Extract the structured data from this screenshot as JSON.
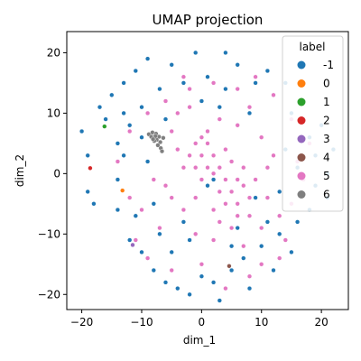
{
  "chart_data": {
    "type": "scatter",
    "title": "UMAP projection",
    "xlabel": "dim_1",
    "ylabel": "dim_2",
    "xlim": [
      -22.5,
      24.5
    ],
    "ylim": [
      -22.5,
      23.5
    ],
    "xticks": [
      -20,
      -10,
      0,
      10,
      20
    ],
    "yticks": [
      -20,
      -10,
      0,
      10,
      20
    ],
    "grid": false,
    "legend": {
      "title": "label",
      "placement": "top-right",
      "entries": [
        {
          "label": "-1",
          "color": "#1f77b4"
        },
        {
          "label": "0",
          "color": "#ff7f0e"
        },
        {
          "label": "1",
          "color": "#2ca02c"
        },
        {
          "label": "2",
          "color": "#d62728"
        },
        {
          "label": "3",
          "color": "#9467bd"
        },
        {
          "label": "4",
          "color": "#8c564b"
        },
        {
          "label": "5",
          "color": "#e377c2"
        },
        {
          "label": "6",
          "color": "#7f7f7f"
        }
      ]
    },
    "series": [
      {
        "name": "-1",
        "color": "#1f77b4",
        "points": [
          [
            -20,
            7
          ],
          [
            -19,
            3
          ],
          [
            -19,
            -3
          ],
          [
            -18,
            -5
          ],
          [
            -17,
            11
          ],
          [
            -16,
            9
          ],
          [
            -15,
            13
          ],
          [
            -14,
            5
          ],
          [
            -14,
            -6
          ],
          [
            -13,
            15
          ],
          [
            -13,
            3
          ],
          [
            -12,
            8
          ],
          [
            -12,
            -11
          ],
          [
            -11,
            17
          ],
          [
            -10,
            -13
          ],
          [
            -10,
            11
          ],
          [
            -9,
            19
          ],
          [
            -8,
            -16
          ],
          [
            -7,
            14
          ],
          [
            -7,
            -10
          ],
          [
            -6,
            -18
          ],
          [
            -5,
            18
          ],
          [
            -4,
            -19
          ],
          [
            -3,
            15
          ],
          [
            -2,
            -20
          ],
          [
            -1,
            20
          ],
          [
            0,
            -17
          ],
          [
            1,
            16
          ],
          [
            2,
            -18
          ],
          [
            3,
            -21
          ],
          [
            4,
            14
          ],
          [
            4,
            20
          ],
          [
            5,
            -16
          ],
          [
            6,
            18
          ],
          [
            7,
            -14
          ],
          [
            8,
            -19
          ],
          [
            9,
            15
          ],
          [
            10,
            -12
          ],
          [
            11,
            17
          ],
          [
            12,
            -16
          ],
          [
            12,
            13
          ],
          [
            13,
            -10
          ],
          [
            14,
            15
          ],
          [
            15,
            -13
          ],
          [
            15,
            10
          ],
          [
            16,
            -8
          ],
          [
            17,
            12
          ],
          [
            18,
            -6
          ],
          [
            18,
            6
          ],
          [
            19,
            3
          ],
          [
            19,
            -2
          ],
          [
            20,
            8
          ],
          [
            21,
            0
          ],
          [
            21,
            -4
          ],
          [
            22,
            4
          ],
          [
            8,
            10
          ],
          [
            -6,
            9
          ],
          [
            -8,
            -5
          ],
          [
            -11,
            -7
          ],
          [
            0,
            12
          ],
          [
            1,
            -2
          ],
          [
            2,
            -1
          ],
          [
            -3,
            -8
          ],
          [
            6,
            -9
          ],
          [
            9,
            -4
          ],
          [
            -9,
            2
          ],
          [
            -10,
            6
          ],
          [
            14,
            4
          ],
          [
            16,
            1
          ],
          [
            11,
            -8
          ],
          [
            -5,
            -13
          ],
          [
            3,
            11
          ],
          [
            -2,
            -11
          ],
          [
            13,
            -3
          ],
          [
            -14,
            -1
          ],
          [
            -13,
            10
          ],
          [
            5,
            -12
          ]
        ]
      },
      {
        "name": "0",
        "color": "#ff7f0e",
        "points": [
          [
            -13.2,
            -2.8
          ]
        ]
      },
      {
        "name": "1",
        "color": "#2ca02c",
        "points": [
          [
            -16.2,
            7.8
          ]
        ]
      },
      {
        "name": "2",
        "color": "#d62728",
        "points": [
          [
            -18.6,
            0.9
          ]
        ]
      },
      {
        "name": "3",
        "color": "#9467bd",
        "points": [
          [
            -11.5,
            -11.8
          ]
        ]
      },
      {
        "name": "4",
        "color": "#8c564b",
        "points": [
          [
            4.6,
            -15.3
          ]
        ]
      },
      {
        "name": "5",
        "color": "#e377c2",
        "points": [
          [
            -1,
            5
          ],
          [
            0,
            6
          ],
          [
            1,
            5
          ],
          [
            -2,
            3
          ],
          [
            0,
            3
          ],
          [
            2,
            3
          ],
          [
            -1,
            1
          ],
          [
            1,
            1
          ],
          [
            3,
            1
          ],
          [
            0,
            -1
          ],
          [
            2,
            0
          ],
          [
            4,
            -1
          ],
          [
            5,
            2
          ],
          [
            5,
            -3
          ],
          [
            6,
            -5
          ],
          [
            7,
            -2
          ],
          [
            8,
            -4
          ],
          [
            6,
            -7
          ],
          [
            8,
            -7
          ],
          [
            9,
            -1
          ],
          [
            7,
            1
          ],
          [
            4,
            -5
          ],
          [
            3,
            -3
          ],
          [
            -3,
            1
          ],
          [
            -4,
            4
          ],
          [
            -5,
            7
          ],
          [
            -4,
            10
          ],
          [
            -2,
            11
          ],
          [
            3,
            9
          ],
          [
            6,
            8
          ],
          [
            8,
            11
          ],
          [
            10,
            6
          ],
          [
            12,
            3
          ],
          [
            11,
            -4
          ],
          [
            10,
            -9
          ],
          [
            13,
            -7
          ],
          [
            2,
            -11
          ],
          [
            -1,
            -10
          ],
          [
            -3,
            -6
          ],
          [
            -6,
            -2
          ],
          [
            -7,
            -9
          ],
          [
            -9,
            -14
          ],
          [
            -10,
            -6
          ],
          [
            0,
            -15
          ],
          [
            4,
            -19
          ],
          [
            7,
            -12
          ],
          [
            10,
            -15
          ],
          [
            14,
            -11
          ],
          [
            15,
            -5
          ],
          [
            16,
            2
          ],
          [
            15,
            9
          ],
          [
            12,
            13
          ],
          [
            9,
            16
          ],
          [
            6,
            14
          ],
          [
            2,
            15
          ],
          [
            -2,
            14
          ],
          [
            -6,
            12
          ],
          [
            -9,
            10
          ],
          [
            -12,
            7
          ],
          [
            -14,
            2
          ],
          [
            -12,
            -4
          ],
          [
            17,
            -1
          ],
          [
            -1,
            -4
          ],
          [
            2,
            -6
          ],
          [
            5,
            -9
          ],
          [
            1,
            7
          ],
          [
            -5,
            -4
          ],
          [
            -8,
            -1
          ],
          [
            11,
            1
          ],
          [
            18,
            5
          ],
          [
            -11,
            -11
          ],
          [
            -5,
            -16
          ],
          [
            8,
            -17
          ],
          [
            13,
            -14
          ],
          [
            -3,
            16
          ],
          [
            3,
            -8
          ],
          [
            4,
            4
          ],
          [
            6,
            -1
          ]
        ]
      },
      {
        "name": "6",
        "color": "#7f7f7f",
        "points": [
          [
            -8.8,
            6.5
          ],
          [
            -8.2,
            6.8
          ],
          [
            -7.6,
            6.6
          ],
          [
            -7.1,
            6.1
          ],
          [
            -7.5,
            5.6
          ],
          [
            -6.9,
            5.2
          ],
          [
            -7.3,
            4.7
          ],
          [
            -6.8,
            4.2
          ],
          [
            -7.7,
            6.2
          ],
          [
            -8.4,
            6.1
          ],
          [
            -6.6,
            3.7
          ],
          [
            -7.9,
            5.4
          ],
          [
            -6.4,
            5.9
          ],
          [
            -8.1,
            5.7
          ]
        ]
      }
    ]
  }
}
